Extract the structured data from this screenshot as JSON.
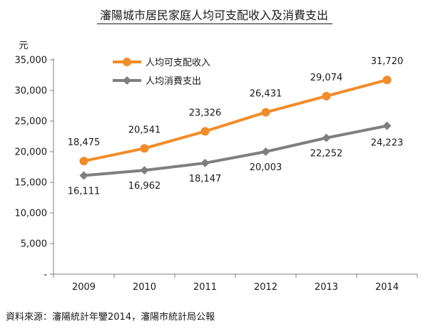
{
  "chart_data": {
    "type": "line",
    "title": "瀋陽城市居民家庭人均可支配收入及消費支出",
    "ylabel": "元",
    "xlabel": "",
    "categories": [
      "2009",
      "2010",
      "2011",
      "2012",
      "2013",
      "2014"
    ],
    "ylim": [
      0,
      35000
    ],
    "yticks": [
      0,
      5000,
      10000,
      15000,
      20000,
      25000,
      30000,
      35000
    ],
    "ytick_labels": [
      "-",
      "5,000",
      "10,000",
      "15,000",
      "20,000",
      "25,000",
      "30,000",
      "35,000"
    ],
    "grid": false,
    "legend_position": "top-left",
    "series": [
      {
        "name": "人均可支配收入",
        "values": [
          18475,
          20541,
          23326,
          26431,
          29074,
          31720
        ],
        "labels": [
          "18,475",
          "20,541",
          "23,326",
          "26,431",
          "29,074",
          "31,720"
        ],
        "color": "#f28c28",
        "marker": "circle"
      },
      {
        "name": "人均消費支出",
        "values": [
          16111,
          16962,
          18147,
          20003,
          22252,
          24223
        ],
        "labels": [
          "16,111",
          "16,962",
          "18,147",
          "20,003",
          "22,252",
          "24,223"
        ],
        "color": "#7f7f7f",
        "marker": "diamond"
      }
    ]
  },
  "source": "資料來源：瀋陽統計年鑒2014，瀋陽市統計局公報"
}
